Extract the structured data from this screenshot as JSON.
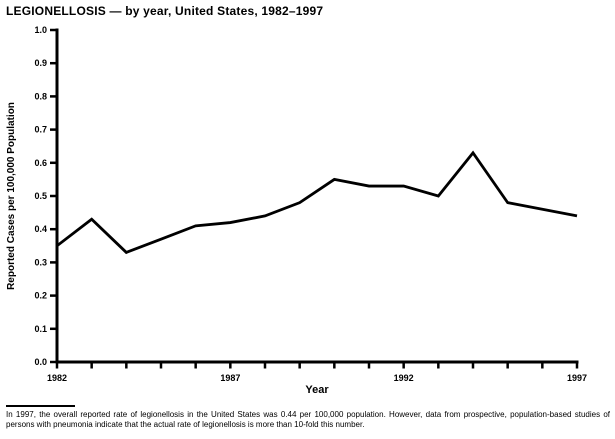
{
  "page": {
    "title": "LEGIONELLOSIS — by year, United States, 1982–1997",
    "footnote": "In 1997, the overall reported rate of legionellosis in the United States was 0.44 per 100,000 population. However, data from prospective, population-based studies of persons with pneumonia indicate that the actual rate of legionellosis is more than 10-fold this number."
  },
  "chart_data": {
    "type": "line",
    "title": "LEGIONELLOSIS — by year, United States, 1982–1997",
    "xlabel": "Year",
    "ylabel": "Reported Cases per 100,000 Population",
    "x": [
      1982,
      1983,
      1984,
      1985,
      1986,
      1987,
      1988,
      1989,
      1990,
      1991,
      1992,
      1993,
      1994,
      1995,
      1996,
      1997
    ],
    "values": [
      0.35,
      0.43,
      0.33,
      0.37,
      0.41,
      0.42,
      0.44,
      0.48,
      0.55,
      0.53,
      0.53,
      0.5,
      0.63,
      0.48,
      0.46,
      0.44
    ],
    "ylim": [
      0.0,
      1.0
    ],
    "ytick_step": 0.1,
    "xtick_labels": [
      "1982",
      "1987",
      "1992",
      "1997"
    ],
    "grid": false,
    "legend": "none",
    "line_color": "#000000",
    "background_color": "#ffffff"
  }
}
